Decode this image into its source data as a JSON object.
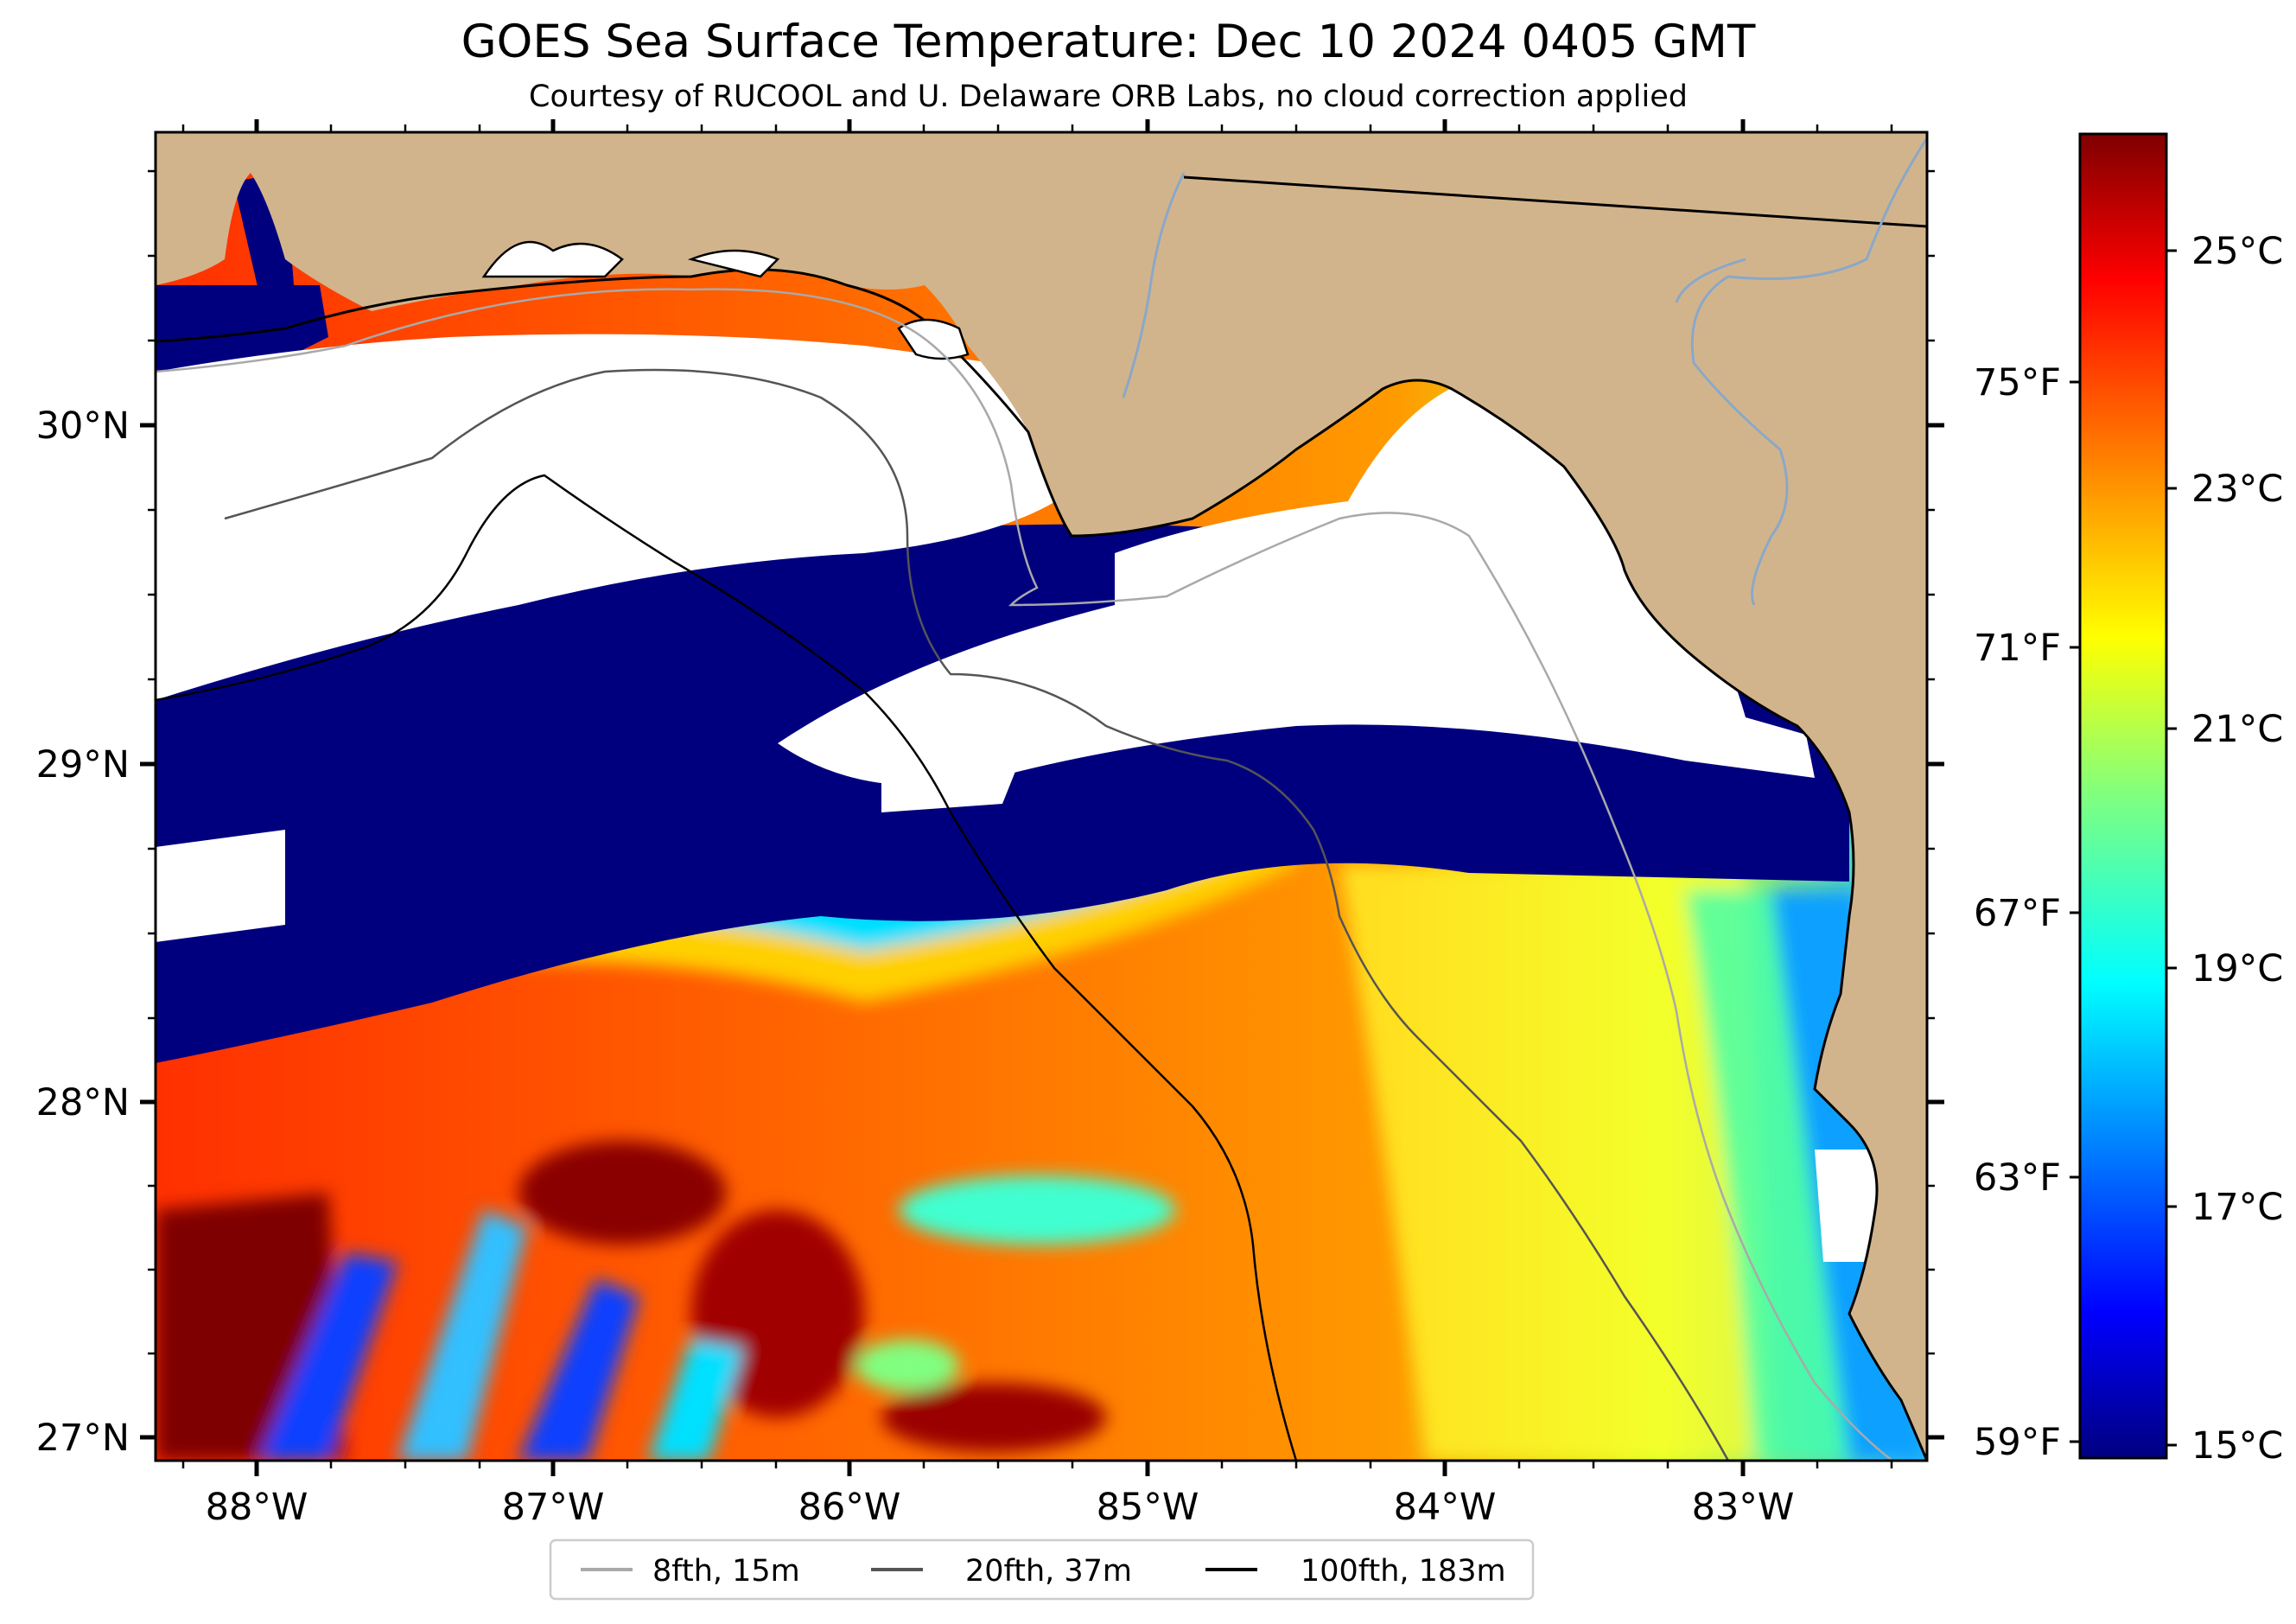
{
  "title": "GOES Sea Surface Temperature: Dec 10 2024 0405 GMT",
  "subtitle": "Courtesy of RUCOOL and U. Delaware ORB Labs, no cloud correction applied",
  "map": {
    "lon_ticks": [
      "88°W",
      "87°W",
      "86°W",
      "85°W",
      "84°W",
      "83°W"
    ],
    "lat_ticks_left": [
      "30°N",
      "29°N",
      "28°N",
      "27°N"
    ],
    "lat_ticks_right_f": [
      "75°F",
      "71°F",
      "67°F",
      "63°F",
      "59°F"
    ],
    "land_color": "#d2b48c",
    "cloud_color": "#ffffff"
  },
  "colorbar": {
    "colormap": "jet",
    "labels_c": [
      "25°C",
      "23°C",
      "21°C",
      "19°C",
      "17°C",
      "15°C"
    ]
  },
  "legend": {
    "items": [
      {
        "label": "8fth, 15m",
        "color": "#a9a9a9"
      },
      {
        "label": "20fth, 37m",
        "color": "#555555"
      },
      {
        "label": "100fth, 183m",
        "color": "#000000"
      }
    ]
  }
}
